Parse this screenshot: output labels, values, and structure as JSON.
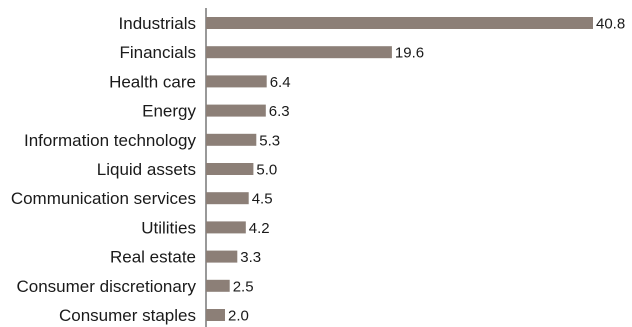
{
  "chart_data": {
    "type": "bar",
    "orientation": "horizontal",
    "categories": [
      "Industrials",
      "Financials",
      "Health care",
      "Energy",
      "Information technology",
      "Liquid assets",
      "Communication services",
      "Utilities",
      "Real estate",
      "Consumer discretionary",
      "Consumer staples"
    ],
    "values": [
      40.8,
      19.6,
      6.4,
      6.3,
      5.3,
      5.0,
      4.5,
      4.2,
      3.3,
      2.5,
      2.0
    ],
    "value_labels": [
      "40.8",
      "19.6",
      "6.4",
      "6.3",
      "5.3",
      "5.0",
      "4.5",
      "4.2",
      "3.3",
      "2.5",
      "2.0"
    ],
    "xlim": [
      0,
      40.8
    ],
    "bar_color": "#8c7f77",
    "axis_color": "#333333",
    "grid": false,
    "legend": "none"
  }
}
